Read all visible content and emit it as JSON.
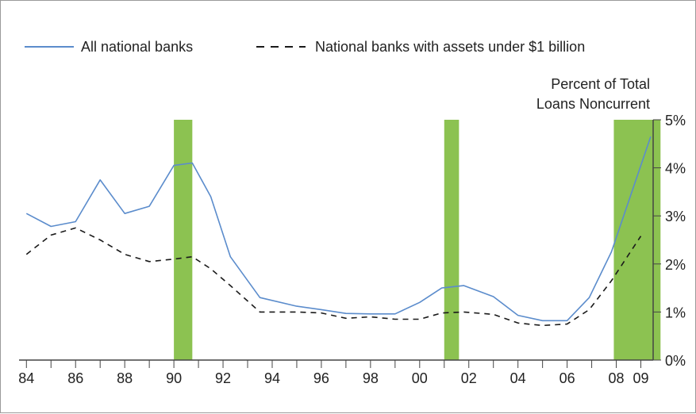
{
  "colors": {
    "all_banks_line": "#5b8ccc",
    "small_banks_line": "#1a1a1a",
    "recession_band": "#8cc251",
    "axis": "#444444"
  },
  "chart_data": {
    "type": "line",
    "title": "",
    "ylabel_lines": [
      "Percent of Total",
      "Loans Noncurrent"
    ],
    "xlabel": "",
    "legend_position": "top",
    "x_ticks": [
      "84",
      "86",
      "88",
      "90",
      "92",
      "94",
      "96",
      "98",
      "00",
      "02",
      "04",
      "06",
      "08",
      "09"
    ],
    "x_tick_values": [
      1984,
      1986,
      1988,
      1990,
      1992,
      1994,
      1996,
      1998,
      2000,
      2002,
      2004,
      2006,
      2008,
      2009
    ],
    "xlim": [
      1983.7,
      2009.5
    ],
    "y_ticks": [
      "0%",
      "1%",
      "2%",
      "3%",
      "4%",
      "5%"
    ],
    "y_tick_values": [
      0,
      1,
      2,
      3,
      4,
      5
    ],
    "ylim": [
      0,
      5
    ],
    "y_axis_side": "right",
    "shaded_periods": [
      {
        "start": 1990.0,
        "end": 1990.75
      },
      {
        "start": 2001.0,
        "end": 2001.6
      },
      {
        "start": 2007.9,
        "end": 2009.8
      }
    ],
    "series": [
      {
        "name": "All national banks",
        "style": "solid",
        "x": [
          1984,
          1985,
          1986,
          1987,
          1988,
          1989,
          1990,
          1990.75,
          1991.5,
          1992.3,
          1993.5,
          1995,
          1996,
          1997,
          1998,
          1999,
          2000,
          2000.9,
          2001.8,
          2003,
          2004,
          2005,
          2006,
          2006.9,
          2007.8,
          2009.4
        ],
        "y": [
          3.05,
          2.78,
          2.88,
          3.75,
          3.05,
          3.2,
          4.05,
          4.1,
          3.4,
          2.15,
          1.3,
          1.12,
          1.05,
          0.97,
          0.96,
          0.96,
          1.2,
          1.5,
          1.55,
          1.32,
          0.93,
          0.82,
          0.82,
          1.3,
          2.25,
          4.65
        ]
      },
      {
        "name": "National banks with assets under $1 billion",
        "style": "dashed",
        "x": [
          1984,
          1985,
          1986,
          1987,
          1988,
          1989,
          1990,
          1990.75,
          1991.5,
          1992.3,
          1993.5,
          1995,
          1996,
          1997,
          1998,
          1999,
          2000,
          2000.9,
          2001.8,
          2003,
          2004,
          2005,
          2006,
          2006.9,
          2007.8,
          2009
        ],
        "y": [
          2.2,
          2.6,
          2.75,
          2.5,
          2.2,
          2.05,
          2.1,
          2.15,
          1.9,
          1.55,
          1.0,
          1.0,
          0.98,
          0.87,
          0.9,
          0.85,
          0.85,
          0.98,
          1.0,
          0.95,
          0.77,
          0.72,
          0.75,
          1.05,
          1.65,
          2.58
        ]
      }
    ]
  }
}
